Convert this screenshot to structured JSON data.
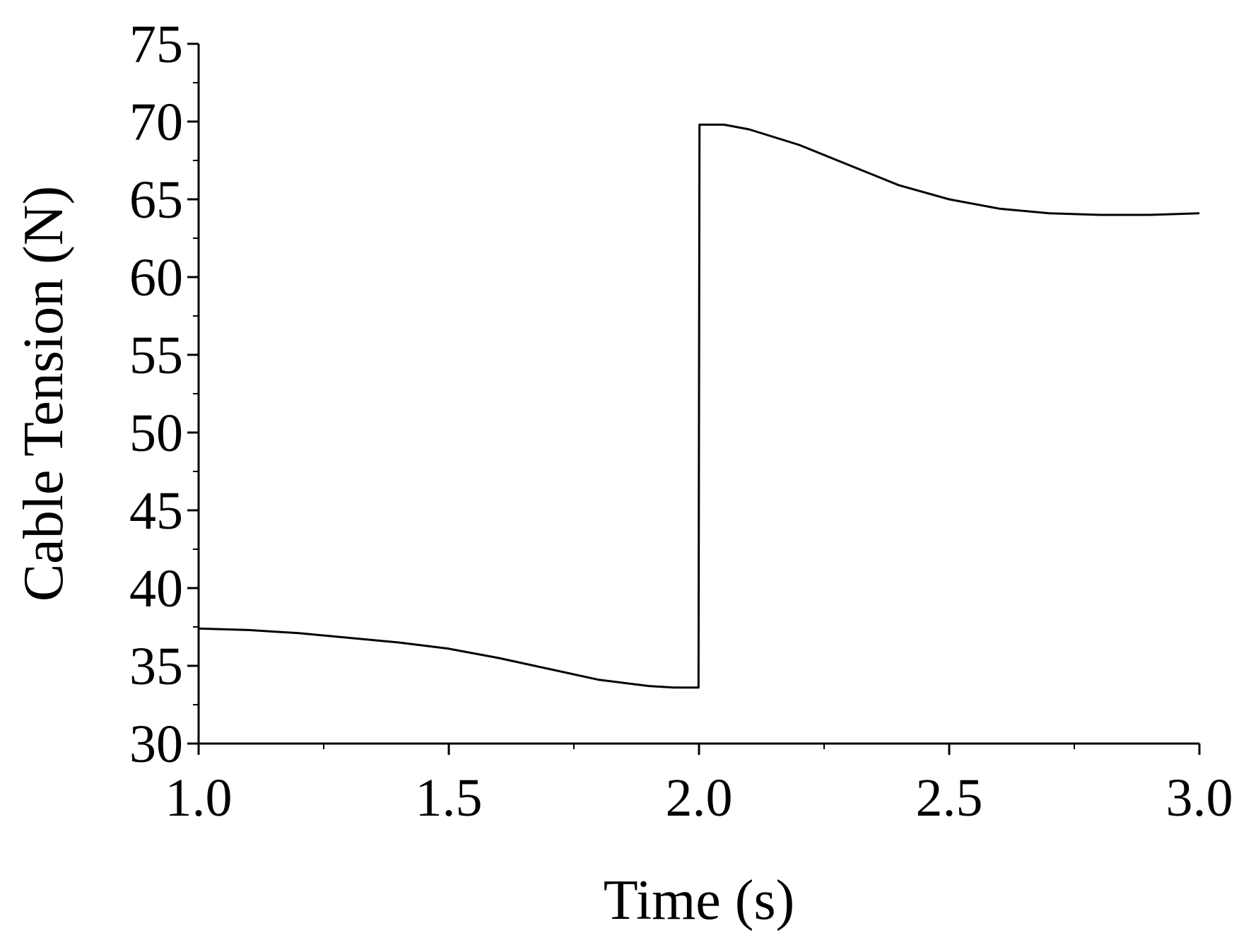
{
  "chart_data": {
    "type": "line",
    "title": "",
    "xlabel": "Time (s)",
    "ylabel": "Cable Tension (N)",
    "xlim": [
      1.0,
      3.0
    ],
    "ylim": [
      30,
      75
    ],
    "x_ticks": [
      "1.0",
      "1.5",
      "2.0",
      "2.5",
      "3.0"
    ],
    "y_ticks": [
      "30",
      "35",
      "40",
      "45",
      "50",
      "55",
      "60",
      "65",
      "70",
      "75"
    ],
    "grid": false,
    "line_color": "#000000",
    "series": [
      {
        "x": [
          1.0,
          1.1,
          1.2,
          1.3,
          1.4,
          1.5,
          1.6,
          1.7,
          1.8,
          1.9,
          1.95,
          1.999,
          2.001,
          2.05,
          2.1,
          2.2,
          2.3,
          2.4,
          2.5,
          2.6,
          2.7,
          2.8,
          2.9,
          3.0
        ],
        "y": [
          37.4,
          37.3,
          37.1,
          36.8,
          36.5,
          36.1,
          35.5,
          34.8,
          34.1,
          33.7,
          33.6,
          33.6,
          69.8,
          69.8,
          69.5,
          68.5,
          67.2,
          65.9,
          65.0,
          64.4,
          64.1,
          64.0,
          64.0,
          64.1
        ]
      }
    ]
  }
}
